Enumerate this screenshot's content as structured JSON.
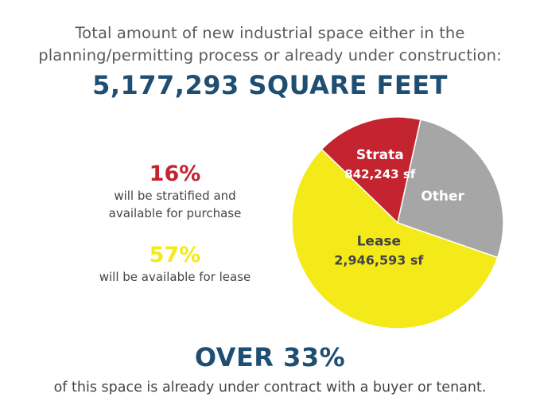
{
  "intro": {
    "line1": "Total amount of new industrial space either in the",
    "line2": "planning/permitting process or already under construction:"
  },
  "headline": "5,177,293 SQUARE FEET",
  "stats": {
    "strata": {
      "pct": "16%",
      "line1": "will be stratified and",
      "line2": "available for purchase",
      "color": "#c3242f"
    },
    "lease": {
      "pct": "57%",
      "line1": "will be available for lease",
      "color": "#f4ea1a"
    }
  },
  "bottom": {
    "pct": "OVER 33%",
    "text": "of this space is already under contract with a buyer or tenant."
  },
  "chart_data": {
    "type": "pie",
    "total": 5177293,
    "slices": [
      {
        "name": "Strata",
        "label": "842,243 sf",
        "value": 842243,
        "color": "#c3242f"
      },
      {
        "name": "Other",
        "label": "",
        "value": 1388457,
        "color": "#a6a6a6"
      },
      {
        "name": "Lease",
        "label": "2,946,593 sf",
        "value": 2946593,
        "color": "#f4ea1a"
      }
    ]
  }
}
